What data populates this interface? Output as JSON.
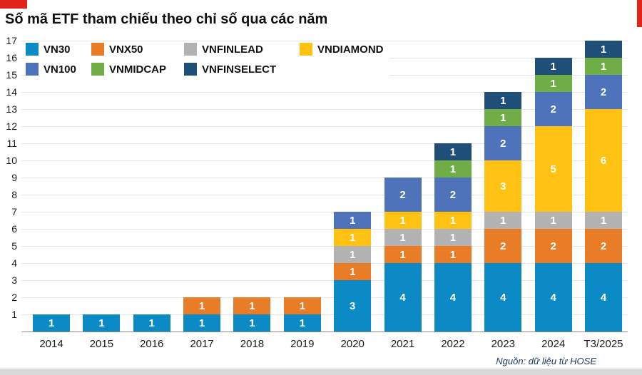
{
  "accent_color": "#e2231a",
  "header": {
    "title": "Số mã ETF tham chiếu theo chỉ số qua các năm"
  },
  "source_note": "Nguồn: dữ liệu từ HOSE",
  "chart_data": {
    "type": "bar",
    "stacked": true,
    "title": "Số mã ETF tham chiếu theo chỉ số qua các năm",
    "categories": [
      "2014",
      "2015",
      "2016",
      "2017",
      "2018",
      "2019",
      "2020",
      "2021",
      "2022",
      "2023",
      "2024",
      "T3/2025"
    ],
    "series": [
      {
        "name": "VN30",
        "color": "#0c8ac5",
        "values": [
          1,
          1,
          1,
          1,
          1,
          1,
          3,
          4,
          4,
          4,
          4,
          4
        ]
      },
      {
        "name": "VNX50",
        "color": "#e97d27",
        "values": [
          0,
          0,
          0,
          1,
          1,
          1,
          1,
          1,
          1,
          2,
          2,
          2
        ]
      },
      {
        "name": "VNFINLEAD",
        "color": "#b2b2b2",
        "values": [
          0,
          0,
          0,
          0,
          0,
          0,
          1,
          1,
          1,
          1,
          1,
          1
        ]
      },
      {
        "name": "VNDIAMOND",
        "color": "#ffc213",
        "values": [
          0,
          0,
          0,
          0,
          0,
          0,
          1,
          1,
          1,
          3,
          5,
          6
        ]
      },
      {
        "name": "VN100",
        "color": "#4f73bb",
        "values": [
          0,
          0,
          0,
          0,
          0,
          0,
          1,
          2,
          2,
          2,
          2,
          2
        ]
      },
      {
        "name": "VNMIDCAP",
        "color": "#70ad47",
        "values": [
          0,
          0,
          0,
          0,
          0,
          0,
          0,
          0,
          1,
          1,
          1,
          1
        ]
      },
      {
        "name": "VNFINSELECT",
        "color": "#1f4e79",
        "values": [
          0,
          0,
          0,
          0,
          0,
          0,
          0,
          0,
          1,
          1,
          1,
          1
        ]
      }
    ],
    "totals": [
      1,
      1,
      1,
      2,
      2,
      2,
      7,
      9,
      11,
      14,
      16,
      17
    ],
    "ylim": [
      0,
      17
    ],
    "ytick_step": 1,
    "grid": true,
    "data_labels": true,
    "legend_position": "top-left",
    "legend_rows": [
      [
        "VN30",
        "VNX50",
        "VNFINLEAD",
        "VNDIAMOND"
      ],
      [
        "VN100",
        "VNMIDCAP",
        "VNFINSELECT"
      ]
    ]
  }
}
